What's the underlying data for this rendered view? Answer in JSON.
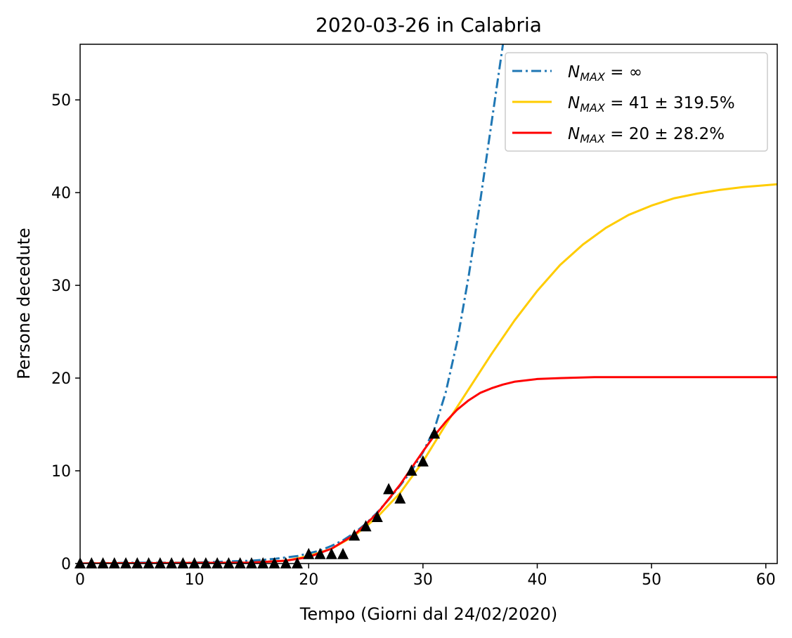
{
  "chart_data": {
    "type": "line",
    "title": "2020-03-26 in Calabria",
    "xlabel": "Tempo (Giorni dal 24/02/2020)",
    "ylabel": "Persone decedute",
    "xlim": [
      0,
      61
    ],
    "ylim": [
      0,
      56
    ],
    "x_ticks": [
      0,
      10,
      20,
      30,
      40,
      50,
      60
    ],
    "y_ticks": [
      0,
      10,
      20,
      30,
      40,
      50
    ],
    "grid": false,
    "legend_position": "top-right",
    "series": [
      {
        "name_prefix": "N",
        "name_sub": "MAX",
        "name_suffix": " = ∞",
        "color": "#1f77b4",
        "style": "dash-dot",
        "x": [
          0,
          5,
          10,
          15,
          17,
          19,
          20,
          21,
          22,
          23,
          24,
          25,
          26,
          27,
          28,
          29,
          30,
          31,
          32,
          33,
          34,
          35,
          36,
          37
        ],
        "y": [
          0.0,
          0.1,
          0.1,
          0.3,
          0.5,
          0.8,
          1.1,
          1.4,
          1.9,
          2.5,
          3.3,
          4.3,
          5.5,
          6.9,
          8.4,
          10.0,
          12.0,
          14.5,
          18.5,
          24.0,
          31.0,
          39.0,
          47.5,
          56.0
        ]
      },
      {
        "name_prefix": "N",
        "name_sub": "MAX",
        "name_suffix": " = 41 ± 319.5%",
        "color": "#ffcc00",
        "style": "solid",
        "x": [
          0,
          15,
          18,
          20,
          22,
          24,
          26,
          28,
          30,
          32,
          34,
          36,
          38,
          40,
          42,
          44,
          46,
          48,
          50,
          52,
          54,
          56,
          58,
          61
        ],
        "y": [
          0.0,
          0.1,
          0.3,
          0.8,
          1.6,
          3.0,
          5.0,
          7.6,
          11.0,
          15.0,
          18.8,
          22.6,
          26.2,
          29.4,
          32.2,
          34.4,
          36.2,
          37.6,
          38.6,
          39.4,
          39.9,
          40.3,
          40.6,
          40.9
        ]
      },
      {
        "name_prefix": "N",
        "name_sub": "MAX",
        "name_suffix": " = 20 ± 28.2%",
        "color": "#ff0000",
        "style": "solid",
        "x": [
          0,
          15,
          18,
          20,
          22,
          24,
          26,
          28,
          30,
          31,
          32,
          33,
          34,
          35,
          36,
          37,
          38,
          40,
          42,
          45,
          50,
          55,
          61
        ],
        "y": [
          0.0,
          0.1,
          0.3,
          0.7,
          1.6,
          3.1,
          5.4,
          8.5,
          12.1,
          13.8,
          15.3,
          16.6,
          17.6,
          18.4,
          18.9,
          19.3,
          19.6,
          19.9,
          20.0,
          20.1,
          20.1,
          20.1,
          20.1
        ]
      }
    ],
    "observed": {
      "marker": "triangle",
      "color": "#000000",
      "x": [
        0,
        1,
        2,
        3,
        4,
        5,
        6,
        7,
        8,
        9,
        10,
        11,
        12,
        13,
        14,
        15,
        16,
        17,
        18,
        19,
        20,
        21,
        22,
        23,
        24,
        25,
        26,
        27,
        28,
        29,
        30,
        31
      ],
      "y": [
        0,
        0,
        0,
        0,
        0,
        0,
        0,
        0,
        0,
        0,
        0,
        0,
        0,
        0,
        0,
        0,
        0,
        0,
        0,
        0,
        1,
        1,
        1,
        1,
        3,
        4,
        5,
        8,
        7,
        10,
        11,
        14
      ]
    }
  }
}
